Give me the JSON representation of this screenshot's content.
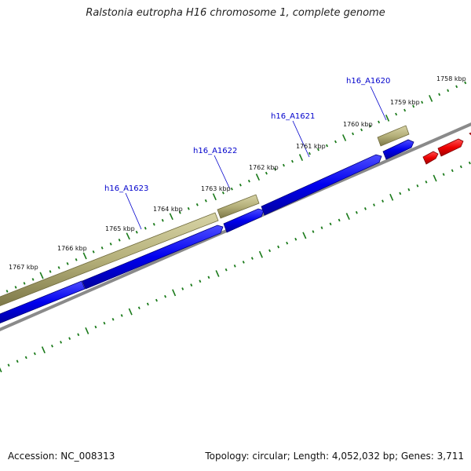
{
  "title": "Ralstonia eutropha H16 chromosome 1, complete genome",
  "footer": {
    "accession_text": "Accession: NC_008313",
    "stats_text": "Topology: circular; Length: 4,052,032 bp; Genes: 3,711"
  },
  "colors": {
    "background": "#ffffff",
    "backbone": "#8a8a8a",
    "tick": "#1a7a1a",
    "gene_olive": "#b5b07a",
    "gene_blue": "#0000ee",
    "gene_red": "#ee0000",
    "gene_label": "#0000cc"
  },
  "kbp_labels": [
    "1758 kbp",
    "1759 kbp",
    "1760 kbp",
    "1761 kbp",
    "1762 kbp",
    "1763 kbp",
    "1764 kbp",
    "1765 kbp",
    "1766 kbp",
    "1767 kbp"
  ],
  "gene_labels": [
    "h16_A1620",
    "h16_A1621",
    "h16_A1622",
    "h16_A1623"
  ]
}
